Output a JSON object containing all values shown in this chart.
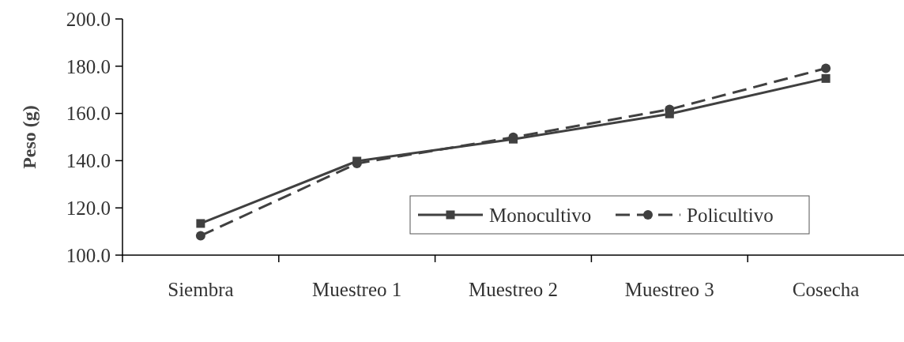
{
  "chart_data": {
    "type": "line",
    "ylabel": "Peso (g)",
    "categories": [
      "Siembra",
      "Muestreo 1",
      "Muestreo 2",
      "Muestreo 3",
      "Cosecha"
    ],
    "series": [
      {
        "name": "Monocultivo",
        "color": "#404040",
        "marker": "square",
        "line_style": "solid",
        "values": [
          113.4,
          139.8,
          149.1,
          159.8,
          174.8
        ]
      },
      {
        "name": "Policultivo",
        "color": "#404040",
        "marker": "circle",
        "line_style": "dashed",
        "values": [
          108.2,
          138.8,
          149.9,
          161.7,
          179.1
        ]
      }
    ],
    "ylim": [
      100,
      200
    ],
    "yticks": [
      {
        "value": 100,
        "label": "100.0"
      },
      {
        "value": 120,
        "label": "120.0"
      },
      {
        "value": 140,
        "label": "140.0"
      },
      {
        "value": 160,
        "label": "160.0"
      },
      {
        "value": 180,
        "label": "180.0"
      },
      {
        "value": 200,
        "label": "200.0"
      }
    ],
    "grid": false,
    "legend": "bottom right"
  }
}
